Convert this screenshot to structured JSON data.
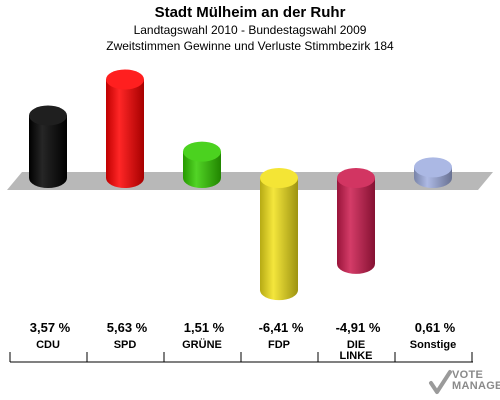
{
  "header": {
    "title": "Stadt Mülheim an der Ruhr",
    "subtitle1": "Landtagswahl 2010 - Bundestagswahl 2009",
    "subtitle2": "Zweitstimmen Gewinne und Verluste Stimmbezirk 184"
  },
  "chart_data": {
    "type": "bar",
    "title": "Stadt Mülheim an der Ruhr",
    "subtitle": "Landtagswahl 2010 - Bundestagswahl 2009 / Zweitstimmen Gewinne und Verluste Stimmbezirk 184",
    "categories": [
      "CDU",
      "SPD",
      "GRÜNE",
      "FDP",
      "DIE LINKE",
      "Sonstige"
    ],
    "category_lines": [
      [
        "CDU"
      ],
      [
        "SPD"
      ],
      [
        "GRÜNE"
      ],
      [
        "FDP"
      ],
      [
        "DIE",
        "LINKE"
      ],
      [
        "Sonstige"
      ]
    ],
    "values": [
      3.57,
      5.63,
      1.51,
      -6.41,
      -4.91,
      0.61
    ],
    "value_labels": [
      "3,57 %",
      "5,63 %",
      "1,51 %",
      "-6,41 %",
      "-4,91 %",
      "0,61 %"
    ],
    "colors": [
      "#000000",
      "#ff0000",
      "#33cc00",
      "#f2e21a",
      "#cc1a4d",
      "#a0aee0"
    ],
    "ylim": [
      -7,
      7
    ]
  },
  "logo": {
    "line1": "VOTE",
    "line2": "MANAGER"
  }
}
